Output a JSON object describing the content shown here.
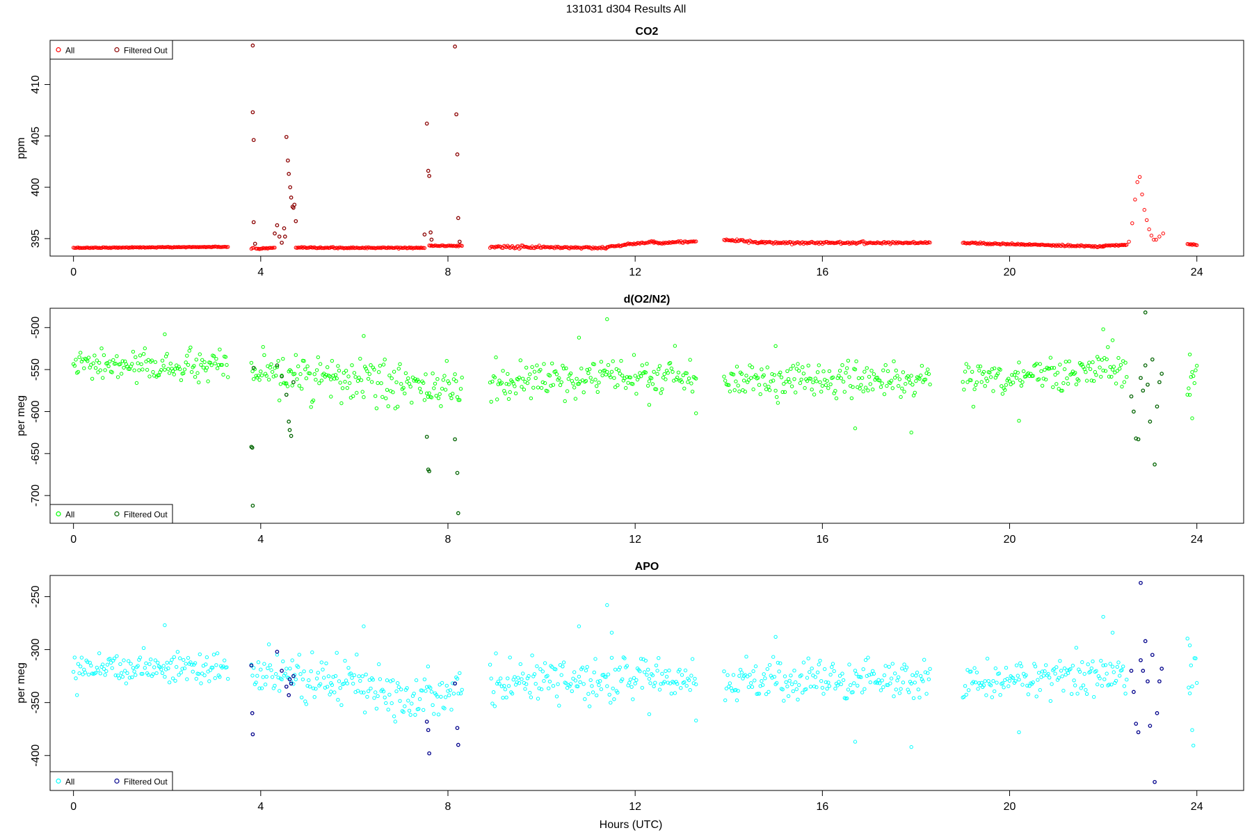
{
  "page_title": "131031   d304   Results All",
  "xlabel": "Hours (UTC)",
  "colors": {
    "co2_all": "#ff0000",
    "co2_filtered": "#8b0000",
    "o2_all": "#00ff00",
    "o2_filtered": "#006400",
    "apo_all": "#00ffff",
    "apo_filtered": "#00008b"
  },
  "chart_data": [
    {
      "type": "scatter",
      "title": "CO2",
      "xlabel": "",
      "ylabel": "ppm",
      "xlim": [
        -0.5,
        25
      ],
      "ylim": [
        393.3,
        414.3
      ],
      "x_ticks": [
        0,
        4,
        8,
        12,
        16,
        20,
        24
      ],
      "y_ticks": [
        395,
        400,
        405,
        410
      ],
      "legend": {
        "position": "top-left",
        "entries": [
          "All",
          "Filtered Out"
        ]
      },
      "series": [
        {
          "name": "All",
          "color": "#ff0000",
          "segments": [
            [
              0.0,
              3.3,
              394.1,
              394.2,
              0.02
            ],
            [
              3.8,
              3.85,
              394.0,
              394.1,
              0.02
            ],
            [
              3.9,
              4.3,
              394.0,
              394.1,
              0.03
            ],
            [
              4.75,
              7.5,
              394.1,
              394.1,
              0.03
            ],
            [
              7.6,
              8.3,
              394.3,
              394.3,
              0.03
            ],
            [
              8.9,
              11.4,
              394.2,
              394.1,
              0.06
            ],
            [
              11.4,
              11.8,
              394.2,
              394.4,
              0.04
            ],
            [
              11.8,
              12.4,
              394.4,
              394.7,
              0.05
            ],
            [
              12.4,
              13.3,
              394.6,
              394.7,
              0.05
            ],
            [
              13.9,
              14.7,
              394.9,
              394.6,
              0.06
            ],
            [
              14.7,
              18.3,
              394.6,
              394.6,
              0.06
            ],
            [
              19.0,
              22.0,
              394.6,
              394.2,
              0.04
            ],
            [
              22.0,
              22.5,
              394.3,
              394.4,
              0.03
            ],
            [
              23.8,
              24.0,
              394.5,
              394.4,
              0.03
            ]
          ],
          "points": [
            [
              22.55,
              394.7
            ],
            [
              22.62,
              396.5
            ],
            [
              22.68,
              398.8
            ],
            [
              22.73,
              400.5
            ],
            [
              22.78,
              401.0
            ],
            [
              22.83,
              399.3
            ],
            [
              22.88,
              397.8
            ],
            [
              22.93,
              396.8
            ],
            [
              22.98,
              395.9
            ],
            [
              23.03,
              395.3
            ],
            [
              23.08,
              394.9
            ],
            [
              23.13,
              394.9
            ],
            [
              23.2,
              395.2
            ],
            [
              23.28,
              395.5
            ]
          ]
        },
        {
          "name": "Filtered Out",
          "color": "#8b0000",
          "points": [
            [
              3.83,
              413.8
            ],
            [
              3.83,
              407.3
            ],
            [
              3.85,
              404.6
            ],
            [
              3.85,
              396.6
            ],
            [
              3.88,
              394.5
            ],
            [
              4.3,
              395.5
            ],
            [
              4.35,
              396.3
            ],
            [
              4.4,
              395.2
            ],
            [
              4.45,
              394.6
            ],
            [
              4.5,
              396.0
            ],
            [
              4.52,
              395.2
            ],
            [
              4.55,
              404.9
            ],
            [
              4.58,
              402.6
            ],
            [
              4.6,
              401.3
            ],
            [
              4.63,
              400.0
            ],
            [
              4.65,
              399.0
            ],
            [
              4.68,
              398.1
            ],
            [
              4.7,
              398.0
            ],
            [
              4.72,
              398.3
            ],
            [
              4.75,
              396.7
            ],
            [
              7.5,
              395.4
            ],
            [
              7.55,
              406.2
            ],
            [
              7.58,
              401.6
            ],
            [
              7.6,
              401.1
            ],
            [
              7.63,
              395.6
            ],
            [
              7.65,
              394.9
            ],
            [
              8.15,
              413.7
            ],
            [
              8.18,
              407.1
            ],
            [
              8.2,
              403.2
            ],
            [
              8.22,
              397.0
            ],
            [
              8.25,
              394.7
            ]
          ]
        }
      ]
    },
    {
      "type": "scatter",
      "title": "d(O2/N2)",
      "xlabel": "",
      "ylabel": "per meg",
      "xlim": [
        -0.5,
        25
      ],
      "ylim": [
        -733,
        -477
      ],
      "x_ticks": [
        0,
        4,
        8,
        12,
        16,
        20,
        24
      ],
      "y_ticks": [
        -500,
        -550,
        -600,
        -650,
        -700
      ],
      "legend": {
        "position": "bottom-left",
        "entries": [
          "All",
          "Filtered Out"
        ]
      },
      "series": [
        {
          "name": "All",
          "color": "#00ff00",
          "segments": [
            [
              0.0,
              3.3,
              -545,
              -548,
              9
            ],
            [
              3.8,
              5.5,
              -555,
              -560,
              11
            ],
            [
              5.5,
              8.3,
              -562,
              -575,
              13
            ],
            [
              8.9,
              13.3,
              -565,
              -558,
              10
            ],
            [
              13.9,
              18.3,
              -562,
              -562,
              10
            ],
            [
              19.0,
              22.5,
              -562,
              -548,
              10
            ],
            [
              23.8,
              24.0,
              -565,
              -565,
              20
            ]
          ],
          "points": [
            [
              1.95,
              -508
            ],
            [
              6.2,
              -510
            ],
            [
              10.8,
              -512
            ],
            [
              11.4,
              -490
            ],
            [
              15.0,
              -522
            ],
            [
              22.2,
              -515
            ],
            [
              22.0,
              -502
            ],
            [
              13.3,
              -602
            ],
            [
              16.7,
              -620
            ],
            [
              17.9,
              -625
            ],
            [
              12.3,
              -592
            ],
            [
              20.2,
              -611
            ],
            [
              23.9,
              -608
            ],
            [
              23.85,
              -532
            ],
            [
              9.3,
              -585
            ]
          ]
        },
        {
          "name": "Filtered Out",
          "color": "#006400",
          "points": [
            [
              3.8,
              -642
            ],
            [
              3.82,
              -643
            ],
            [
              3.83,
              -712
            ],
            [
              3.85,
              -548
            ],
            [
              4.35,
              -545
            ],
            [
              4.45,
              -558
            ],
            [
              4.55,
              -580
            ],
            [
              4.6,
              -612
            ],
            [
              4.62,
              -622
            ],
            [
              4.65,
              -629
            ],
            [
              4.7,
              -565
            ],
            [
              7.55,
              -630
            ],
            [
              7.58,
              -669
            ],
            [
              7.6,
              -671
            ],
            [
              8.15,
              -633
            ],
            [
              8.2,
              -673
            ],
            [
              8.22,
              -721
            ],
            [
              22.6,
              -582
            ],
            [
              22.65,
              -600
            ],
            [
              22.7,
              -632
            ],
            [
              22.75,
              -633
            ],
            [
              22.8,
              -560
            ],
            [
              22.85,
              -575
            ],
            [
              22.9,
              -545
            ],
            [
              22.95,
              -568
            ],
            [
              23.0,
              -612
            ],
            [
              23.05,
              -538
            ],
            [
              23.1,
              -663
            ],
            [
              23.15,
              -594
            ],
            [
              23.2,
              -565
            ],
            [
              23.25,
              -555
            ],
            [
              22.9,
              -482
            ]
          ]
        }
      ]
    },
    {
      "type": "scatter",
      "title": "APO",
      "xlabel": "Hours (UTC)",
      "ylabel": "per meg",
      "xlim": [
        -0.5,
        25
      ],
      "ylim": [
        -433,
        -230
      ],
      "x_ticks": [
        0,
        4,
        8,
        12,
        16,
        20,
        24
      ],
      "y_ticks": [
        -250,
        -300,
        -350,
        -400
      ],
      "legend": {
        "position": "bottom-left",
        "entries": [
          "All",
          "Filtered Out"
        ]
      },
      "series": [
        {
          "name": "All",
          "color": "#00ffff",
          "segments": [
            [
              0.0,
              3.3,
              -315,
              -318,
              8
            ],
            [
              3.8,
              5.5,
              -325,
              -328,
              10
            ],
            [
              5.5,
              8.3,
              -330,
              -345,
              12
            ],
            [
              8.9,
              13.3,
              -332,
              -325,
              9
            ],
            [
              13.9,
              18.3,
              -330,
              -328,
              9
            ],
            [
              19.0,
              22.5,
              -332,
              -320,
              9
            ],
            [
              23.8,
              24.0,
              -325,
              -325,
              20
            ]
          ],
          "points": [
            [
              1.95,
              -277
            ],
            [
              6.2,
              -278
            ],
            [
              10.8,
              -278
            ],
            [
              11.4,
              -258
            ],
            [
              15.0,
              -288
            ],
            [
              22.2,
              -284
            ],
            [
              22.0,
              -269
            ],
            [
              13.3,
              -367
            ],
            [
              16.7,
              -387
            ],
            [
              17.9,
              -392
            ],
            [
              12.3,
              -361
            ],
            [
              20.2,
              -378
            ],
            [
              23.9,
              -376
            ],
            [
              23.85,
              -296
            ],
            [
              11.5,
              -284
            ]
          ]
        },
        {
          "name": "Filtered Out",
          "color": "#00008b",
          "points": [
            [
              3.8,
              -315
            ],
            [
              3.82,
              -360
            ],
            [
              3.83,
              -380
            ],
            [
              4.35,
              -302
            ],
            [
              4.45,
              -320
            ],
            [
              4.55,
              -335
            ],
            [
              4.6,
              -343
            ],
            [
              4.62,
              -328
            ],
            [
              4.65,
              -332
            ],
            [
              4.7,
              -325
            ],
            [
              7.55,
              -368
            ],
            [
              7.58,
              -376
            ],
            [
              7.6,
              -398
            ],
            [
              8.15,
              -332
            ],
            [
              8.2,
              -374
            ],
            [
              8.22,
              -390
            ],
            [
              22.6,
              -320
            ],
            [
              22.65,
              -340
            ],
            [
              22.7,
              -370
            ],
            [
              22.75,
              -378
            ],
            [
              22.8,
              -310
            ],
            [
              22.85,
              -320
            ],
            [
              22.9,
              -292
            ],
            [
              22.95,
              -330
            ],
            [
              23.0,
              -372
            ],
            [
              23.05,
              -305
            ],
            [
              23.1,
              -425
            ],
            [
              23.15,
              -360
            ],
            [
              23.2,
              -330
            ],
            [
              23.25,
              -318
            ],
            [
              22.8,
              -237
            ]
          ]
        }
      ]
    }
  ]
}
